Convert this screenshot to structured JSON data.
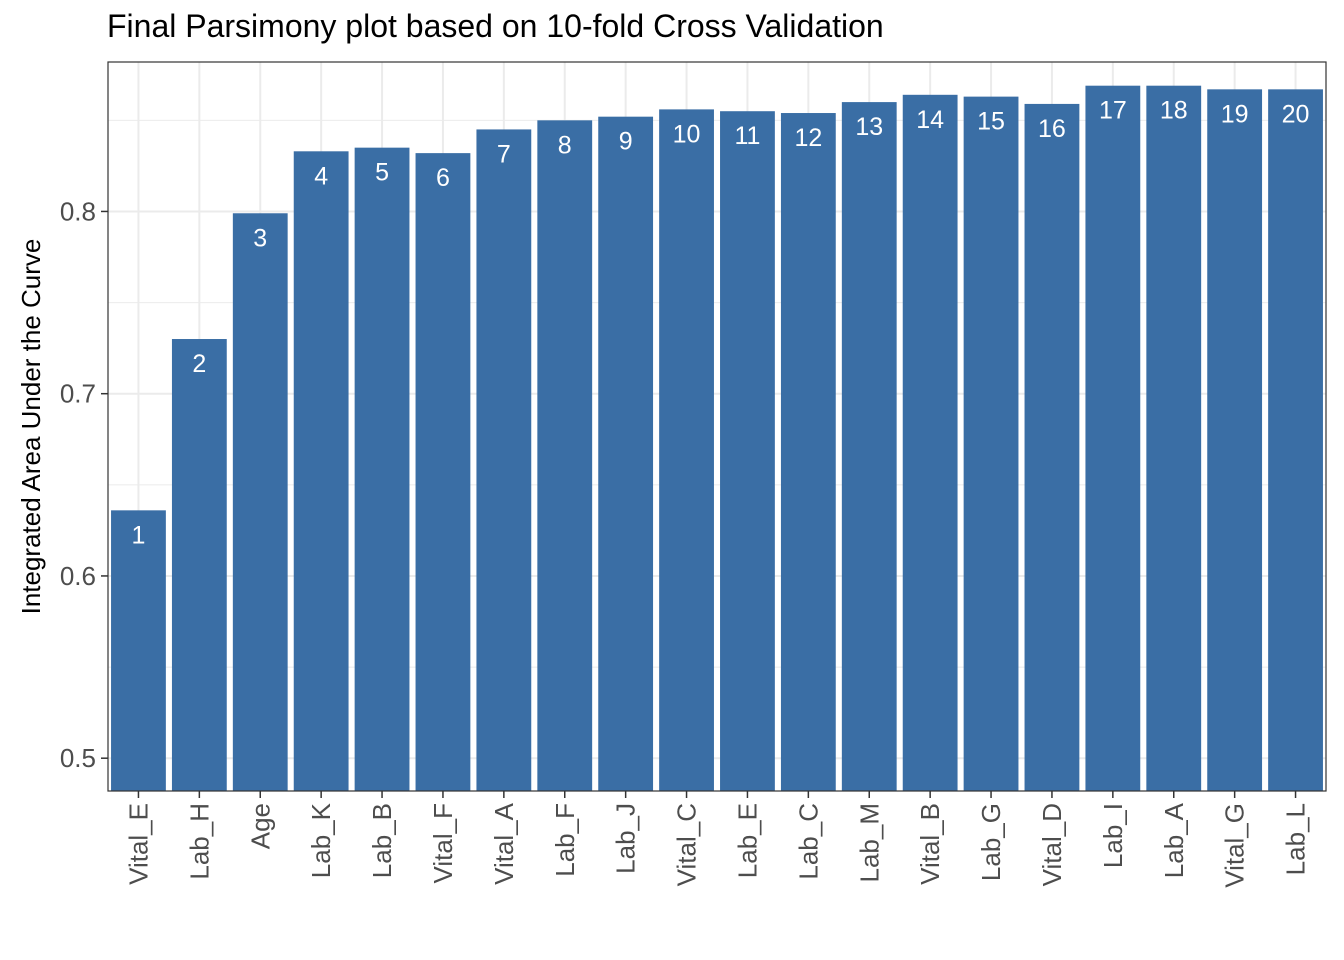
{
  "chart_data": {
    "type": "bar",
    "title": "Final Parsimony plot based on 10-fold Cross Validation",
    "xlabel": "",
    "ylabel": "Integrated Area Under the Curve",
    "categories": [
      "Vital_E",
      "Lab_H",
      "Age",
      "Lab_K",
      "Lab_B",
      "Vital_F",
      "Vital_A",
      "Lab_F",
      "Lab_J",
      "Vital_C",
      "Lab_E",
      "Lab_C",
      "Lab_M",
      "Vital_B",
      "Lab_G",
      "Vital_D",
      "Lab_I",
      "Lab_A",
      "Vital_G",
      "Lab_L"
    ],
    "values": [
      0.636,
      0.73,
      0.799,
      0.833,
      0.835,
      0.832,
      0.845,
      0.85,
      0.852,
      0.856,
      0.855,
      0.854,
      0.86,
      0.864,
      0.863,
      0.859,
      0.869,
      0.869,
      0.867,
      0.867
    ],
    "bar_labels": [
      "1",
      "2",
      "3",
      "4",
      "5",
      "6",
      "7",
      "8",
      "9",
      "10",
      "11",
      "12",
      "13",
      "14",
      "15",
      "16",
      "17",
      "18",
      "19",
      "20"
    ],
    "ylim": [
      0.482,
      0.882
    ],
    "yticks": [
      0.5,
      0.6,
      0.7,
      0.8
    ],
    "ytick_labels": [
      "0.5",
      "0.6",
      "0.7",
      "0.8"
    ],
    "grid": true,
    "bar_color": "#3a6ea5",
    "label_color": "#ffffff",
    "grid_color": "#ebebeb"
  }
}
